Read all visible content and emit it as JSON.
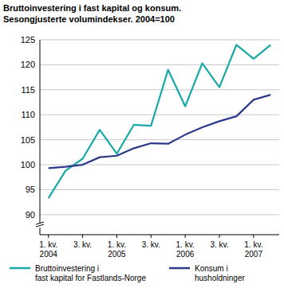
{
  "chart_data": {
    "type": "line",
    "title": "Bruttoinvestering i fast kapital og konsum.",
    "subtitle": "Sesongjusterte volumindekser. 2004=100",
    "categories": [
      "1. kv.\n2004",
      null,
      "3. kv.",
      null,
      "1. kv.\n2005",
      null,
      "3. kv.",
      null,
      "1. kv.\n2006",
      null,
      "3. kv.",
      null,
      "1. kv.\n2007",
      null
    ],
    "series": [
      {
        "name": "Bruttoinvestering i\nfast kapital for Fastlands-Norge",
        "color": "#19a8a8",
        "values": [
          93.3,
          98.8,
          101.2,
          107,
          102.2,
          108,
          107.8,
          119,
          111.7,
          120.3,
          115.5,
          124,
          121.2,
          124
        ]
      },
      {
        "name": "Konsum i\nhusholdninger",
        "color": "#2b3a8a",
        "values": [
          99.3,
          99.6,
          100,
          101.5,
          101.8,
          103.3,
          104.3,
          104.2,
          106,
          107.5,
          108.7,
          109.7,
          113,
          114
        ]
      }
    ],
    "ylim": [
      86,
      125
    ],
    "yticks": [
      90,
      95,
      100,
      105,
      110,
      115,
      120,
      125
    ],
    "grid": true,
    "legend": "bottom"
  }
}
